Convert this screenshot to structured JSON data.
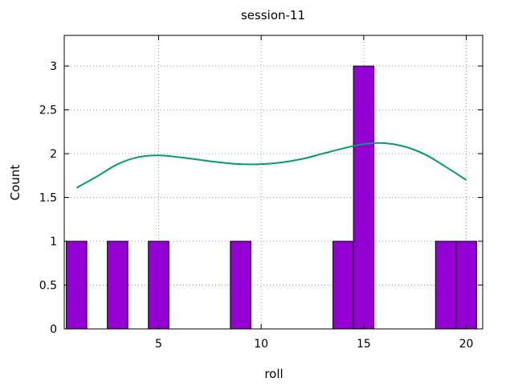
{
  "chart_data": {
    "type": "bar",
    "title": "session-11",
    "xlabel": "roll",
    "ylabel": "Count",
    "xlim": [
      0.4,
      20.8
    ],
    "ylim": [
      0,
      3.35
    ],
    "xticks": [
      5,
      10,
      15,
      20
    ],
    "yticks": [
      0,
      0.5,
      1,
      1.5,
      2,
      2.5,
      3
    ],
    "grid": true,
    "bar_width": 1,
    "bars": [
      {
        "x": 1,
        "value": 1
      },
      {
        "x": 3,
        "value": 1
      },
      {
        "x": 5,
        "value": 1
      },
      {
        "x": 9,
        "value": 1
      },
      {
        "x": 14,
        "value": 1
      },
      {
        "x": 15,
        "value": 3
      },
      {
        "x": 19,
        "value": 1
      },
      {
        "x": 20,
        "value": 1
      }
    ],
    "bar_color": "#9400d3",
    "series": [
      {
        "type": "line",
        "color": "#009e73",
        "x": [
          1,
          2,
          3,
          4,
          5,
          6,
          7,
          8,
          9,
          10,
          11,
          12,
          13,
          14,
          15,
          16,
          17,
          18,
          19,
          20
        ],
        "values": [
          1.61,
          1.74,
          1.88,
          1.96,
          1.98,
          1.96,
          1.93,
          1.9,
          1.88,
          1.88,
          1.9,
          1.94,
          2.0,
          2.06,
          2.11,
          2.12,
          2.08,
          1.99,
          1.85,
          1.7
        ]
      }
    ]
  }
}
